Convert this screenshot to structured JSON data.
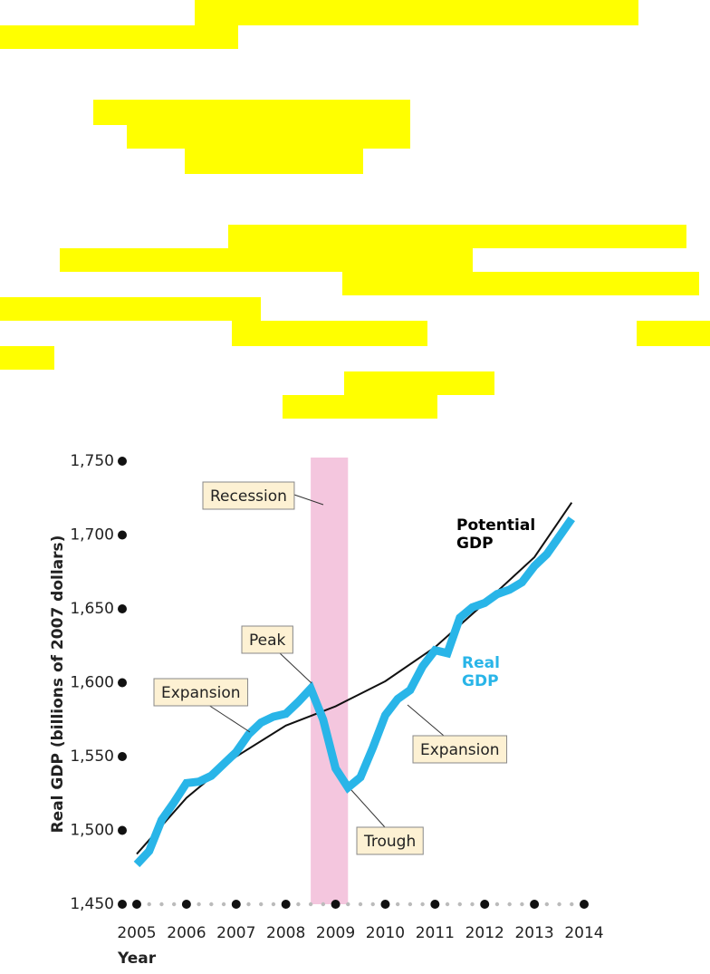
{
  "chart_data": {
    "type": "line",
    "y_label": "Real GDP (billions of 2007 dollars)",
    "x_label": "Year",
    "xlim": [
      2005,
      2014
    ],
    "xticks": [
      2005,
      2006,
      2007,
      2008,
      2009,
      2010,
      2011,
      2012,
      2013,
      2014
    ],
    "ylim": [
      1450,
      1750
    ],
    "yticks": [
      {
        "value": 1450,
        "label": "1,450"
      },
      {
        "value": 1500,
        "label": "1,500"
      },
      {
        "value": 1550,
        "label": "1,550"
      },
      {
        "value": 1600,
        "label": "1,600"
      },
      {
        "value": 1650,
        "label": "1,650"
      },
      {
        "value": 1700,
        "label": "1,700"
      },
      {
        "value": 1750,
        "label": "1,750"
      }
    ],
    "series": [
      {
        "name": "Potential GDP",
        "color": "#111111",
        "x": [
          2005,
          2006,
          2007,
          2008,
          2009,
          2010,
          2011,
          2012,
          2013,
          2013.75
        ],
        "values": [
          1484,
          1522,
          1550,
          1571,
          1584,
          1601,
          1624,
          1654,
          1685,
          1722
        ]
      },
      {
        "name": "Real GDP",
        "color": "#29b5e8",
        "x": [
          2005,
          2005.25,
          2005.5,
          2005.75,
          2006,
          2006.25,
          2006.5,
          2006.75,
          2007,
          2007.25,
          2007.5,
          2007.75,
          2008,
          2008.25,
          2008.5,
          2008.75,
          2009,
          2009.25,
          2009.5,
          2009.75,
          2010,
          2010.25,
          2010.5,
          2010.75,
          2011,
          2011.25,
          2011.5,
          2011.75,
          2012,
          2012.25,
          2012.5,
          2012.75,
          2013,
          2013.25,
          2013.5,
          2013.75
        ],
        "values": [
          1477,
          1486,
          1507,
          1519,
          1532,
          1533,
          1537,
          1545,
          1553,
          1565,
          1573,
          1577,
          1579,
          1587,
          1596,
          1575,
          1542,
          1529,
          1536,
          1556,
          1578,
          1589,
          1595,
          1611,
          1622,
          1620,
          1644,
          1651,
          1654,
          1660,
          1663,
          1668,
          1679,
          1687,
          1699,
          1711
        ]
      }
    ],
    "recession": {
      "label": "Recession",
      "x": [
        2008.5,
        2009.25
      ],
      "color": "#f4c6de"
    },
    "annotations": [
      "Peak",
      "Trough",
      "Expansion",
      "Expansion"
    ]
  }
}
